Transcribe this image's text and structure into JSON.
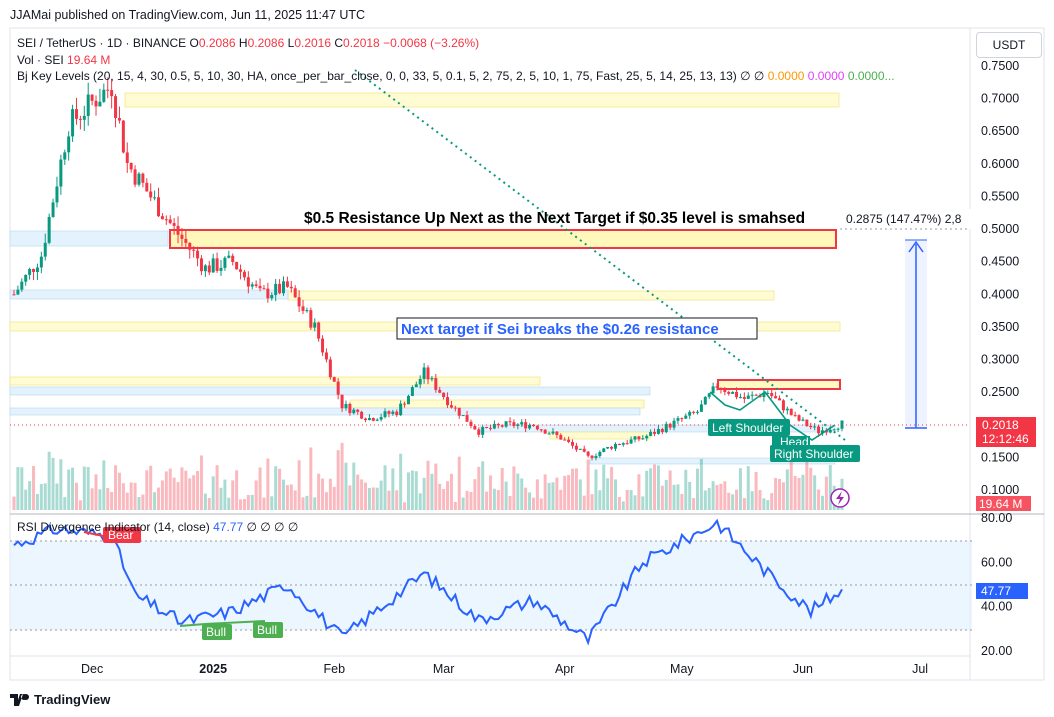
{
  "header": {
    "published": "JJAMai published on TradingView.com, Jun 11, 2025 11:47 UTC"
  },
  "legend": {
    "symbol": "SEI / TetherUS · 1D · BINANCE",
    "o_label": "O",
    "o": "0.2086",
    "h_label": "H",
    "h": "0.2086",
    "l_label": "L",
    "l": "0.2016",
    "c_label": "C",
    "c": "0.2018",
    "change": "−0.0068 (−3.26%)",
    "vol_label": "Vol · SEI",
    "vol": "19.64 M",
    "bj_label": "Bj Key Levels (20, 15, 4, 30, 0.5, 5, 10, 30, HA, once_per_bar_close, 0, 0, 33, 5, 0.1, 5, 2, 75, 2, 5, 10, 1, 75, Fast, 25, 5, 14, 25, 13, 13)",
    "bj_icons": "∅ ∅",
    "bj_v1": "0.0000",
    "bj_v2": "0.0000",
    "bj_v3": "0.0000..."
  },
  "currency_button": "USDT",
  "price_axis": {
    "ticks": [
      "0.7500",
      "0.7000",
      "0.6500",
      "0.6000",
      "0.5500",
      "0.5000",
      "0.4500",
      "0.4000",
      "0.3500",
      "0.3000",
      "0.2500",
      "0.2000",
      "0.1500",
      "0.1000"
    ],
    "current_price": "0.2018",
    "countdown": "12:12:46",
    "volume_badge": "19.64 M"
  },
  "rsi": {
    "label": "RSI Divergence Indicator (14, close)",
    "value": "47.77",
    "icons": "∅ ∅ ∅ ∅",
    "ticks": [
      "80.00",
      "60.00",
      "40.00",
      "20.00"
    ],
    "bear_label": "Bear",
    "bull_label_1": "Bull",
    "bull_label_2": "Bull"
  },
  "time_axis": {
    "ticks": [
      "Dec",
      "2025",
      "Feb",
      "Mar",
      "Apr",
      "May",
      "Jun",
      "Jul"
    ]
  },
  "annotations": {
    "resistance_text": "$0.5 Resistance Up Next as the Next Target if $0.35 level is smahsed",
    "next_target_text": "Next target if Sei  breaks the $0.26 resistance",
    "measure_text": "0.2875 (147.47%) 2,8",
    "left_shoulder": "Left Shoulder",
    "head": "Head",
    "right_shoulder": "Right Shoulder"
  },
  "footer": {
    "brand": "TradingView"
  },
  "chart_data": [
    {
      "type": "candlestick",
      "title": "SEI / TetherUS · 1D · BINANCE",
      "x_axis_ticks": [
        "Dec",
        "2025",
        "Feb",
        "Mar",
        "Apr",
        "May",
        "Jun",
        "Jul"
      ],
      "ylim": [
        0.08,
        0.78
      ],
      "close_path": [
        {
          "x": "2024-11-11",
          "close": 0.4
        },
        {
          "x": "2024-11-18",
          "close": 0.46
        },
        {
          "x": "2024-11-25",
          "close": 0.66
        },
        {
          "x": "2024-12-02",
          "close": 0.7
        },
        {
          "x": "2024-12-06",
          "close": 0.72
        },
        {
          "x": "2024-12-10",
          "close": 0.6
        },
        {
          "x": "2024-12-16",
          "close": 0.55
        },
        {
          "x": "2024-12-22",
          "close": 0.5
        },
        {
          "x": "2024-12-30",
          "close": 0.44
        },
        {
          "x": "2025-01-06",
          "close": 0.45
        },
        {
          "x": "2025-01-13",
          "close": 0.4
        },
        {
          "x": "2025-01-20",
          "close": 0.41
        },
        {
          "x": "2025-01-27",
          "close": 0.35
        },
        {
          "x": "2025-02-03",
          "close": 0.23
        },
        {
          "x": "2025-02-10",
          "close": 0.21
        },
        {
          "x": "2025-02-17",
          "close": 0.22
        },
        {
          "x": "2025-02-24",
          "close": 0.28
        },
        {
          "x": "2025-03-03",
          "close": 0.23
        },
        {
          "x": "2025-03-10",
          "close": 0.19
        },
        {
          "x": "2025-03-17",
          "close": 0.2
        },
        {
          "x": "2025-03-24",
          "close": 0.2
        },
        {
          "x": "2025-03-31",
          "close": 0.18
        },
        {
          "x": "2025-04-07",
          "close": 0.15
        },
        {
          "x": "2025-04-14",
          "close": 0.17
        },
        {
          "x": "2025-04-21",
          "close": 0.18
        },
        {
          "x": "2025-04-28",
          "close": 0.2
        },
        {
          "x": "2025-05-05",
          "close": 0.22
        },
        {
          "x": "2025-05-10",
          "close": 0.26
        },
        {
          "x": "2025-05-17",
          "close": 0.24
        },
        {
          "x": "2025-05-23",
          "close": 0.25
        },
        {
          "x": "2025-05-30",
          "close": 0.21
        },
        {
          "x": "2025-06-05",
          "close": 0.19
        },
        {
          "x": "2025-06-11",
          "close": 0.2018
        }
      ],
      "annotations": [
        "$0.5 Resistance Up Next as the Next Target if $0.35 level is smahsed",
        "Next target if Sei  breaks the $0.26 resistance",
        "Left Shoulder",
        "Head",
        "Right Shoulder"
      ]
    },
    {
      "type": "line",
      "title": "RSI Divergence Indicator (14, close)",
      "ylim": [
        15,
        85
      ],
      "bands": [
        30,
        70
      ],
      "series": [
        {
          "name": "RSI",
          "values": [
            {
              "x": "2024-11-11",
              "y": 68
            },
            {
              "x": "2024-11-22",
              "y": 75
            },
            {
              "x": "2024-12-06",
              "y": 72
            },
            {
              "x": "2024-12-12",
              "y": 45
            },
            {
              "x": "2024-12-24",
              "y": 33
            },
            {
              "x": "2025-01-06",
              "y": 38
            },
            {
              "x": "2025-01-20",
              "y": 50
            },
            {
              "x": "2025-02-03",
              "y": 26
            },
            {
              "x": "2025-02-24",
              "y": 55
            },
            {
              "x": "2025-03-10",
              "y": 34
            },
            {
              "x": "2025-03-24",
              "y": 43
            },
            {
              "x": "2025-04-07",
              "y": 25
            },
            {
              "x": "2025-04-21",
              "y": 60
            },
            {
              "x": "2025-05-10",
              "y": 78
            },
            {
              "x": "2025-05-23",
              "y": 55
            },
            {
              "x": "2025-06-03",
              "y": 38
            },
            {
              "x": "2025-06-11",
              "y": 47.77
            }
          ]
        }
      ],
      "labels": [
        "Bear",
        "Bull",
        "Bull"
      ]
    }
  ]
}
